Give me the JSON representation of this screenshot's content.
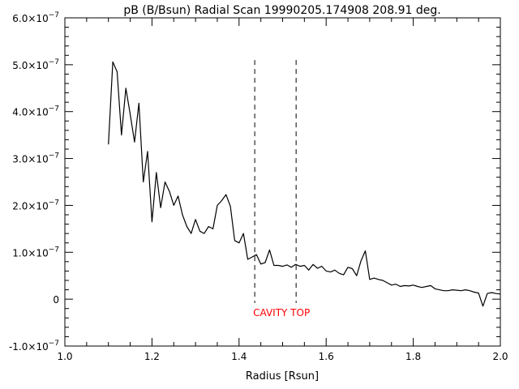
{
  "chart_data": {
    "type": "line",
    "title": "pB (B/Bsun) Radial Scan 19990205.174908 208.91 deg.",
    "xlabel": "Radius [Rsun]",
    "ylabel": "",
    "xlim": [
      1.0,
      2.0
    ],
    "ylim": [
      -1e-07,
      6e-07
    ],
    "grid": false,
    "x_ticks": [
      1.0,
      1.2,
      1.4,
      1.6,
      1.8,
      2.0
    ],
    "x_tick_labels": [
      "1.0",
      "1.2",
      "1.4",
      "1.6",
      "1.8",
      "2.0"
    ],
    "y_ticks": [
      -1e-07,
      0,
      1e-07,
      2e-07,
      3e-07,
      4e-07,
      5e-07,
      6e-07
    ],
    "y_tick_labels": [
      {
        "mantissa": "-1.0×10",
        "exp": "−7"
      },
      {
        "mantissa": "0",
        "exp": ""
      },
      {
        "mantissa": "1.0×10",
        "exp": "−7"
      },
      {
        "mantissa": "2.0×10",
        "exp": "−7"
      },
      {
        "mantissa": "3.0×10",
        "exp": "−7"
      },
      {
        "mantissa": "4.0×10",
        "exp": "−7"
      },
      {
        "mantissa": "5.0×10",
        "exp": "−7"
      },
      {
        "mantissa": "6.0×10",
        "exp": "−7"
      }
    ],
    "series": [
      {
        "x": [
          1.1,
          1.11,
          1.12,
          1.13,
          1.14,
          1.15,
          1.16,
          1.17,
          1.18,
          1.19,
          1.2,
          1.21,
          1.22,
          1.23,
          1.24,
          1.25,
          1.26,
          1.27,
          1.28,
          1.29,
          1.3,
          1.31,
          1.32,
          1.33,
          1.34,
          1.35,
          1.36,
          1.37,
          1.38,
          1.39,
          1.4,
          1.41,
          1.42,
          1.43,
          1.44,
          1.45,
          1.46,
          1.47,
          1.48,
          1.49,
          1.5,
          1.51,
          1.52,
          1.53,
          1.54,
          1.55,
          1.56,
          1.57,
          1.58,
          1.59,
          1.6,
          1.61,
          1.62,
          1.63,
          1.64,
          1.65,
          1.66,
          1.67,
          1.68,
          1.69,
          1.7,
          1.71,
          1.72,
          1.73,
          1.74,
          1.75,
          1.76,
          1.77,
          1.78,
          1.79,
          1.8,
          1.81,
          1.82,
          1.83,
          1.84,
          1.85,
          1.86,
          1.87,
          1.88,
          1.89,
          1.9,
          1.91,
          1.92,
          1.93,
          1.94,
          1.95,
          1.96,
          1.97,
          1.98,
          1.99,
          2.0
        ],
        "y": [
          3.3e-07,
          5.06e-07,
          4.85e-07,
          3.5e-07,
          4.5e-07,
          3.95e-07,
          3.35e-07,
          4.18e-07,
          2.5e-07,
          3.15e-07,
          1.65e-07,
          2.7e-07,
          1.95e-07,
          2.5e-07,
          2.3e-07,
          2e-07,
          2.2e-07,
          1.8e-07,
          1.55e-07,
          1.4e-07,
          1.7e-07,
          1.45e-07,
          1.4e-07,
          1.55e-07,
          1.5e-07,
          2e-07,
          2.1e-07,
          2.23e-07,
          1.98e-07,
          1.25e-07,
          1.2e-07,
          1.4e-07,
          8.5e-08,
          9e-08,
          9.5e-08,
          7.5e-08,
          7.8e-08,
          1.05e-07,
          7.2e-08,
          7.2e-08,
          7e-08,
          7.3e-08,
          6.8e-08,
          7.4e-08,
          7e-08,
          7.2e-08,
          6.2e-08,
          7.4e-08,
          6.6e-08,
          7e-08,
          6e-08,
          5.8e-08,
          6.2e-08,
          5.5e-08,
          5.2e-08,
          6.8e-08,
          6.5e-08,
          5e-08,
          8.2e-08,
          1.03e-07,
          4.2e-08,
          4.5e-08,
          4.2e-08,
          4e-08,
          3.5e-08,
          3e-08,
          3.2e-08,
          2.7e-08,
          2.9e-08,
          2.8e-08,
          3e-08,
          2.7e-08,
          2.5e-08,
          2.7e-08,
          2.9e-08,
          2.2e-08,
          2e-08,
          1.8e-08,
          1.8e-08,
          2e-08,
          1.9e-08,
          1.8e-08,
          2e-08,
          1.8e-08,
          1.5e-08,
          1.3e-08,
          -1.5e-08,
          1.2e-08,
          1.4e-08,
          1.2e-08,
          1.1e-08
        ]
      }
    ],
    "vertical_markers": [
      1.436,
      1.531
    ],
    "marker_ymax": 5.1e-07,
    "annotation": {
      "text": "CAVITY TOP",
      "x": 1.436,
      "y": -1.5e-08,
      "color": "#ff0000"
    }
  }
}
